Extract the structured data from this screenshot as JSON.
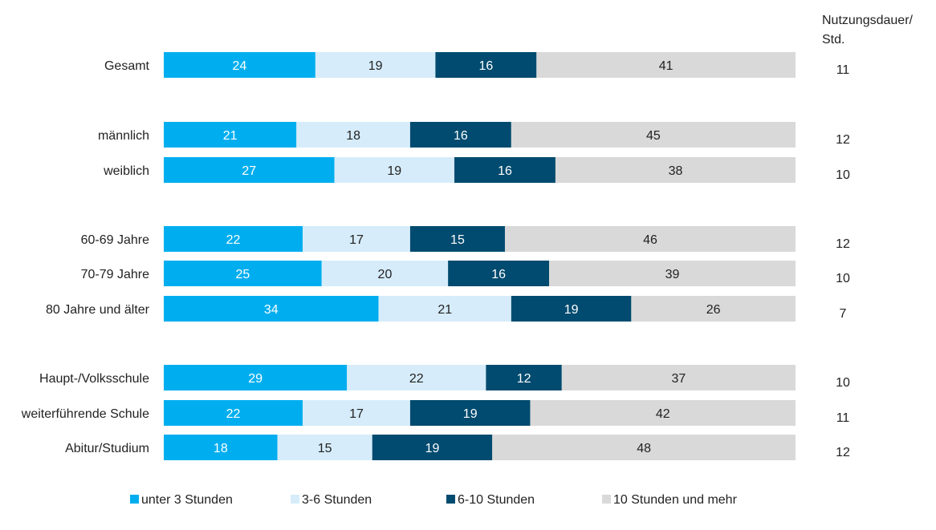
{
  "chart_data": {
    "type": "bar",
    "orientation": "horizontal",
    "stacked": true,
    "xlim": [
      0,
      100
    ],
    "grid": false,
    "legend_position": "bottom",
    "categories": [
      "Gesamt",
      "männlich",
      "weiblich",
      "60-69 Jahre",
      "70-79 Jahre",
      "80 Jahre und älter",
      "Haupt-/Volksschule",
      "weiterführende Schule",
      "Abitur/Studium"
    ],
    "series": [
      {
        "name": "unter 3 Stunden",
        "color": "#00aeef",
        "label_color": "#ffffff",
        "values": [
          24,
          21,
          27,
          22,
          25,
          34,
          29,
          22,
          18
        ]
      },
      {
        "name": "3-6 Stunden",
        "color": "#d6ecfa",
        "label_color": "#222222",
        "values": [
          19,
          18,
          19,
          17,
          20,
          21,
          22,
          17,
          15
        ]
      },
      {
        "name": "6-10 Stunden",
        "color": "#004b6f",
        "label_color": "#ffffff",
        "values": [
          16,
          16,
          16,
          15,
          16,
          19,
          12,
          19,
          19
        ]
      },
      {
        "name": "10 Stunden und mehr",
        "color": "#d9d9d9",
        "label_color": "#222222",
        "values": [
          41,
          45,
          38,
          46,
          39,
          26,
          37,
          42,
          48
        ]
      }
    ],
    "duration_header": [
      "Nutzungsdauer/",
      "Std."
    ],
    "duration_values": [
      11,
      12,
      10,
      12,
      10,
      7,
      10,
      11,
      12
    ]
  }
}
